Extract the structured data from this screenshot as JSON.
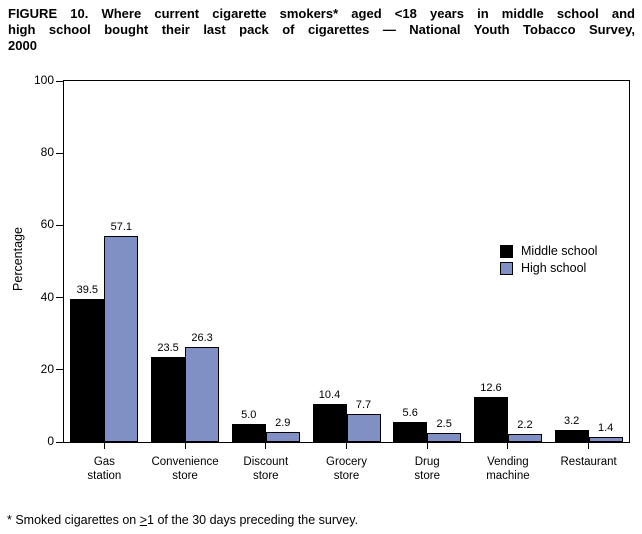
{
  "title_lines": [
    "FIGURE 10. Where current cigarette smokers* aged <18 years in middle school and",
    "high school bought their last pack of cigarettes — National Youth Tobacco Survey,",
    "2000"
  ],
  "footnote": {
    "prefix": "* Smoked cigarettes on ",
    "gte_symbol": ">",
    "suffix": "1 of the 30 days preceding the survey."
  },
  "chart_data": {
    "type": "bar",
    "title": "FIGURE 10. Where current cigarette smokers* aged <18 years in middle school and high school bought their last pack of cigarettes — National Youth Tobacco Survey, 2000",
    "xlabel": "",
    "ylabel": "Percentage",
    "ylim": [
      0,
      100
    ],
    "yticks": [
      0,
      20,
      40,
      60,
      80,
      100
    ],
    "grid": false,
    "legend_position": "right-inside",
    "categories": [
      "Gas station",
      "Convenience store",
      "Discount store",
      "Grocery store",
      "Drug store",
      "Vending machine",
      "Restaurant"
    ],
    "category_label_lines": [
      [
        "Gas",
        "station"
      ],
      [
        "Convenience",
        "store"
      ],
      [
        "Discount",
        "store"
      ],
      [
        "Grocery",
        "store"
      ],
      [
        "Drug",
        "store"
      ],
      [
        "Vending",
        "machine"
      ],
      [
        "Restaurant"
      ]
    ],
    "series": [
      {
        "name": "Middle school",
        "color": "#000000",
        "values": [
          39.5,
          23.5,
          5.0,
          10.4,
          5.6,
          12.6,
          3.2
        ]
      },
      {
        "name": "High school",
        "color": "#8190C4",
        "values": [
          57.1,
          26.3,
          2.9,
          7.7,
          2.5,
          2.2,
          1.4
        ]
      }
    ]
  }
}
